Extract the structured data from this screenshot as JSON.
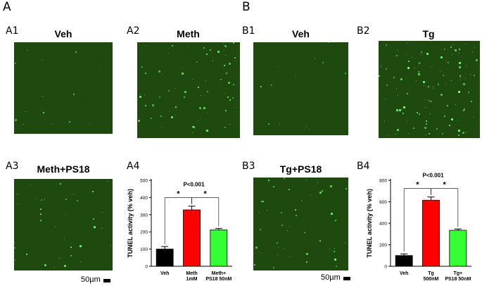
{
  "panels": {
    "A": {
      "letter": "A"
    },
    "B": {
      "letter": "B"
    }
  },
  "images": [
    {
      "id": "A1",
      "label": "A1",
      "title": "Veh",
      "density": 15
    },
    {
      "id": "A2",
      "label": "A2",
      "title": "Meth",
      "density": 70
    },
    {
      "id": "B1",
      "label": "B1",
      "title": "Veh",
      "density": 12
    },
    {
      "id": "B2",
      "label": "B2",
      "title": "Tg",
      "density": 110
    },
    {
      "id": "A3",
      "label": "A3",
      "title": "Meth+PS18",
      "density": 35
    },
    {
      "id": "B3",
      "label": "B3",
      "title": "Tg+PS18",
      "density": 45
    }
  ],
  "scalebars": [
    {
      "id": "A",
      "text": "50µm"
    },
    {
      "id": "B",
      "text": "50µm"
    }
  ],
  "charts_labels": {
    "A4": "A4",
    "B4": "B4"
  },
  "chart_data": [
    {
      "id": "A4",
      "type": "bar",
      "categories": [
        "Veh",
        "Meth\n1mM",
        "Meth+\nPS18 50nM"
      ],
      "values": [
        100,
        328,
        212
      ],
      "errors": [
        15,
        22,
        8
      ],
      "colors": [
        "#000000",
        "#ff0000",
        "#33ff33"
      ],
      "ylabel": "TUNEL activity (% veh)",
      "ylim": [
        0,
        500
      ],
      "yticks": [
        0,
        100,
        200,
        300,
        400,
        500
      ],
      "annotation": "P<0.001",
      "significance": [
        {
          "from": 0,
          "to": 1,
          "label": "*"
        },
        {
          "from": 1,
          "to": 2,
          "label": "*"
        }
      ]
    },
    {
      "id": "B4",
      "type": "bar",
      "categories": [
        "Veh",
        "Tg\n500nM",
        "Tg+\nPS18 50nM"
      ],
      "values": [
        100,
        615,
        335
      ],
      "errors": [
        15,
        30,
        12
      ],
      "colors": [
        "#000000",
        "#ff0000",
        "#33ff33"
      ],
      "ylabel": "TUNEL activity (% veh)",
      "ylim": [
        0,
        800
      ],
      "yticks": [
        0,
        200,
        400,
        600,
        800
      ],
      "annotation": "P<0.001",
      "significance": [
        {
          "from": 0,
          "to": 1,
          "label": "*"
        },
        {
          "from": 1,
          "to": 2,
          "label": "*"
        }
      ]
    }
  ]
}
